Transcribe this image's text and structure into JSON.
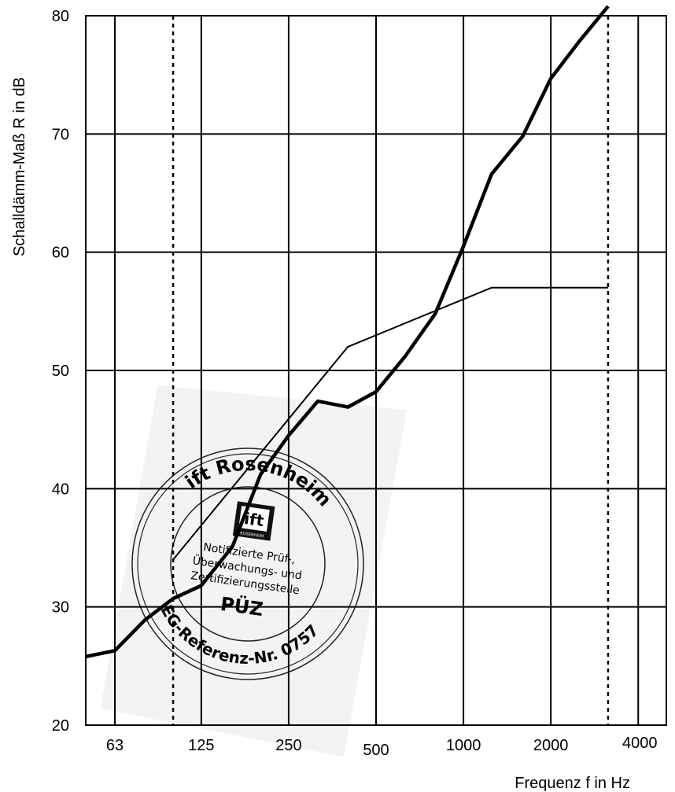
{
  "chart_data": {
    "type": "line",
    "xlabel": "Frequenz f in Hz",
    "ylabel": "Schalldämm-Maß R in dB",
    "x_scale": "log",
    "xlim": [
      50,
      5000
    ],
    "ylim": [
      20,
      80
    ],
    "grid": true,
    "x_ticks": [
      63,
      125,
      250,
      500,
      1000,
      2000,
      4000
    ],
    "y_ticks": [
      20,
      30,
      40,
      50,
      60,
      70,
      80
    ],
    "x_tick_labels": [
      "63",
      "125",
      "250",
      "500",
      "1000",
      "2000",
      "4000"
    ],
    "y_tick_labels": [
      "20",
      "30",
      "40",
      "50",
      "60",
      "70",
      "80"
    ],
    "measurement_range_markers": [
      100,
      3150
    ],
    "series": [
      {
        "style": "thick",
        "x": [
          50,
          63,
          80,
          100,
          125,
          160,
          200,
          250,
          315,
          400,
          500,
          630,
          800,
          1000,
          1250,
          1600,
          2000,
          2500,
          3150
        ],
        "y": [
          25.8,
          26.3,
          28.9,
          30.7,
          31.8,
          35.1,
          41.2,
          44.5,
          47.4,
          46.9,
          48.2,
          51.2,
          54.8,
          60.5,
          66.6,
          69.8,
          74.7,
          77.8,
          80.8
        ]
      },
      {
        "style": "thin",
        "x": [
          100,
          400,
          1250,
          3150
        ],
        "y": [
          34,
          52,
          57,
          57
        ]
      }
    ]
  },
  "seal": {
    "outer_text_top": "ift Rosenheim",
    "outer_text_bottom": "EG-Referenz-Nr. 0757",
    "logo_text": "ift",
    "logo_subtext": "ROSENHEIM",
    "inner_lines": [
      "Notifizierte Prüf-,",
      "Überwachungs- und",
      "Zertifizierungsstelle"
    ],
    "center_text": "PÜZ"
  }
}
